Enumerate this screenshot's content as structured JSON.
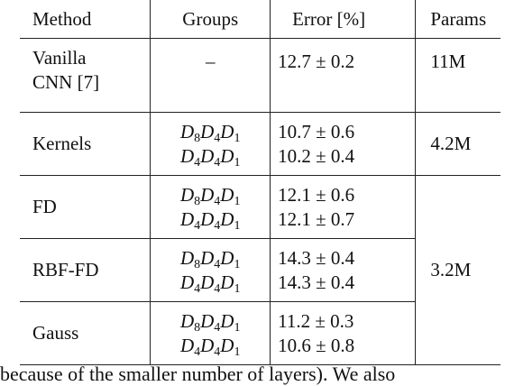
{
  "headers": {
    "method": "Method",
    "groups": "Groups",
    "error": "Error [%]",
    "params": "Params"
  },
  "rows": [
    {
      "method_line1": "Vanilla",
      "method_line2": "CNN [7]",
      "groups": "–",
      "error": "12.7 ± 0.2",
      "params": "11M"
    },
    {
      "method": "Kernels",
      "error_a": "10.7 ± 0.6",
      "error_b": "10.2 ± 0.4",
      "params": "4.2M"
    },
    {
      "method": "FD",
      "error_a": "12.1 ± 0.6",
      "error_b": "12.1 ± 0.7"
    },
    {
      "method": "RBF-FD",
      "error_a": "14.3 ± 0.4",
      "error_b": "14.3 ± 0.4",
      "params": "3.2M"
    },
    {
      "method": "Gauss",
      "error_a": "11.2 ± 0.3",
      "error_b": "10.6 ± 0.8"
    }
  ],
  "group_sets": {
    "a": [
      "D",
      "8",
      "D",
      "4",
      "D",
      "1"
    ],
    "b": [
      "D",
      "4",
      "D",
      "4",
      "D",
      "1"
    ]
  },
  "caption": "because of the smaller number of layers). We also"
}
